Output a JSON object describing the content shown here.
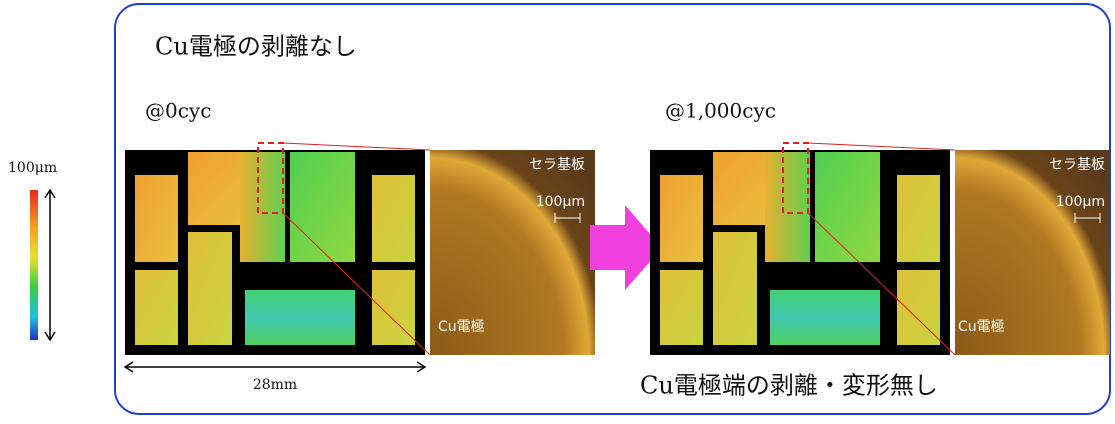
{
  "title": "Cu電極の剥離なし",
  "scale_legend": "100μm",
  "panels": [
    {
      "label": "@0cyc",
      "substrate_label": "セラ基板",
      "scale_label": "100μm",
      "electrode_label": "Cu電極"
    },
    {
      "label": "@1,000cyc",
      "substrate_label": "セラ基板",
      "scale_label": "100μm",
      "electrode_label": "Cu電極"
    }
  ],
  "width_label": "28mm",
  "conclusion": "Cu電極端の剥離・変形無し"
}
